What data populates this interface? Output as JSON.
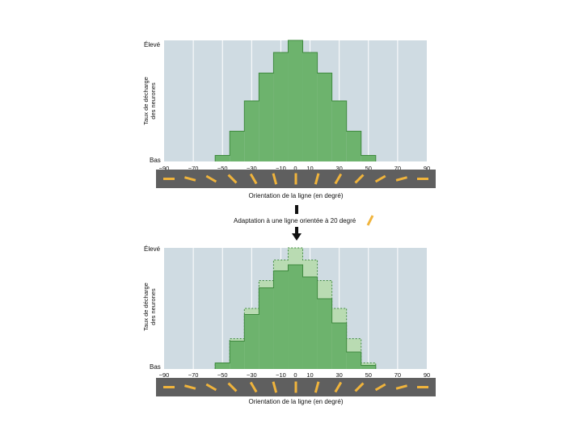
{
  "colors": {
    "plot_bg": "#cfdbe2",
    "gridline": "#ffffff",
    "hist_fill": "#6db36d",
    "hist_stroke": "#3f8a3f",
    "ghost_fill": "#b9dbb2",
    "strip_bg": "#5f5f5f",
    "dash_color": "#f0b43c"
  },
  "caption_arrow": {
    "text": "Adaptation à une ligne orientée à 20 degré",
    "icon": "tilted-line-icon"
  },
  "chart_data": [
    {
      "type": "bar",
      "panel": "before-adaptation",
      "ylabel_line1": "Taux de décharge",
      "ylabel_line2": "des neurones",
      "y_top_label": "Élevé",
      "y_bottom_label": "Bas",
      "xlabel": "Orientation de la ligne (en degré)",
      "xlim": [
        -90,
        90
      ],
      "ylim": [
        0,
        10
      ],
      "grid": true,
      "x_ticks": [
        -90,
        -70,
        -50,
        -30,
        -10,
        0,
        10,
        30,
        50,
        70,
        90
      ],
      "bin_edges": [
        -55,
        -45,
        -35,
        -25,
        -15,
        -5,
        5,
        15,
        25,
        35,
        45,
        55
      ],
      "series": [
        {
          "values": [
            0.5,
            2.5,
            5.0,
            7.3,
            9.0,
            10.0,
            9.0,
            7.3,
            5.0,
            2.5,
            0.5
          ]
        }
      ]
    },
    {
      "type": "bar",
      "panel": "after-adaptation",
      "ylabel_line1": "Taux de décharge",
      "ylabel_line2": "des neurones",
      "y_top_label": "Élevé",
      "y_bottom_label": "Bas",
      "xlabel": "Orientation de la ligne (en degré)",
      "xlim": [
        -90,
        90
      ],
      "ylim": [
        0,
        10
      ],
      "grid": true,
      "x_ticks": [
        -90,
        -70,
        -50,
        -30,
        -10,
        0,
        10,
        30,
        50,
        70,
        90
      ],
      "bin_edges": [
        -55,
        -45,
        -35,
        -25,
        -15,
        -5,
        5,
        15,
        25,
        35,
        45,
        55
      ],
      "series": [
        {
          "style": "dashed-outline",
          "values": [
            0.5,
            2.5,
            5.0,
            7.3,
            9.0,
            10.0,
            9.0,
            7.3,
            5.0,
            2.5,
            0.5
          ]
        },
        {
          "style": "solid",
          "values": [
            0.5,
            2.3,
            4.5,
            6.7,
            8.1,
            8.6,
            7.6,
            5.8,
            3.8,
            1.4,
            0.3
          ]
        }
      ]
    }
  ],
  "orientation_strip": {
    "angles_deg": [
      -90,
      -75,
      -60,
      -45,
      -30,
      -15,
      0,
      15,
      30,
      45,
      60,
      75,
      90
    ]
  }
}
